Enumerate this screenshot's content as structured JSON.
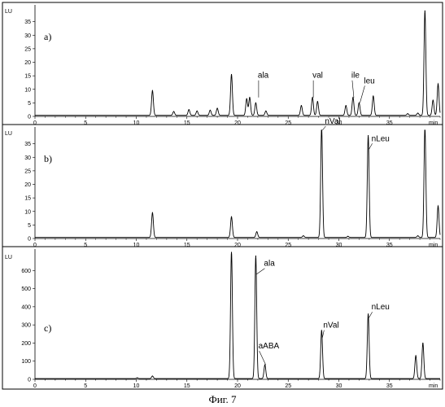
{
  "caption": "Фиг. 7",
  "chart_data": [
    {
      "type": "line",
      "panel_label": "a)",
      "ylabel": "LU",
      "xlabel": "min",
      "xlim": [
        0,
        40
      ],
      "ylim": [
        0,
        40
      ],
      "xticks": [
        0,
        5,
        10,
        15,
        20,
        25,
        30,
        35
      ],
      "yticks": [
        0,
        5,
        10,
        15,
        20,
        25,
        30,
        35
      ],
      "baseline": 0.4,
      "peaks": [
        {
          "x": 11.6,
          "y": 9.5
        },
        {
          "x": 13.7,
          "y": 1.8
        },
        {
          "x": 15.2,
          "y": 2.5
        },
        {
          "x": 16.0,
          "y": 2.0
        },
        {
          "x": 17.3,
          "y": 2.3
        },
        {
          "x": 18.0,
          "y": 3.0
        },
        {
          "x": 19.4,
          "y": 15.5
        },
        {
          "x": 20.9,
          "y": 6.5
        },
        {
          "x": 21.2,
          "y": 7.0
        },
        {
          "x": 21.8,
          "y": 5.0
        },
        {
          "x": 22.8,
          "y": 2.0
        },
        {
          "x": 26.3,
          "y": 4.0
        },
        {
          "x": 27.4,
          "y": 7.0
        },
        {
          "x": 27.9,
          "y": 5.5
        },
        {
          "x": 30.7,
          "y": 4.0
        },
        {
          "x": 31.4,
          "y": 7.0
        },
        {
          "x": 32.0,
          "y": 5.0
        },
        {
          "x": 33.4,
          "y": 7.5
        },
        {
          "x": 36.8,
          "y": 1.0
        },
        {
          "x": 37.8,
          "y": 1.2
        },
        {
          "x": 38.5,
          "y": 39.0
        },
        {
          "x": 39.3,
          "y": 6.0
        },
        {
          "x": 39.8,
          "y": 12.0
        }
      ],
      "annotations": [
        {
          "text": "ala",
          "x": 22.0,
          "y": 7.0
        },
        {
          "text": "val",
          "x": 27.4,
          "y": 7.0
        },
        {
          "text": "ile",
          "x": 31.4,
          "y": 7.0
        },
        {
          "text": "leu",
          "x": 32.0,
          "y": 5.0
        }
      ]
    },
    {
      "type": "line",
      "panel_label": "b)",
      "ylabel": "LU",
      "xlabel": "min",
      "xlim": [
        0,
        40
      ],
      "ylim": [
        0,
        40
      ],
      "xticks": [
        0,
        5,
        10,
        15,
        20,
        25,
        30,
        35
      ],
      "yticks": [
        0,
        5,
        10,
        15,
        20,
        25,
        30,
        35
      ],
      "baseline": 0.4,
      "peaks": [
        {
          "x": 11.6,
          "y": 9.5
        },
        {
          "x": 19.4,
          "y": 8.0
        },
        {
          "x": 21.9,
          "y": 2.5
        },
        {
          "x": 26.5,
          "y": 1.0
        },
        {
          "x": 28.3,
          "y": 41.0
        },
        {
          "x": 30.9,
          "y": 0.8
        },
        {
          "x": 32.9,
          "y": 38.0
        },
        {
          "x": 37.8,
          "y": 1.0
        },
        {
          "x": 38.5,
          "y": 41.0
        },
        {
          "x": 39.8,
          "y": 12.0
        }
      ],
      "annotations": [
        {
          "text": "nVal",
          "x": 28.3,
          "y": 40.0
        },
        {
          "text": "nLeu",
          "x": 32.9,
          "y": 33.0
        }
      ]
    },
    {
      "type": "line",
      "panel_label": "c)",
      "ylabel": "LU",
      "xlabel": "min",
      "xlim": [
        0,
        40
      ],
      "ylim": [
        0,
        700
      ],
      "xticks": [
        0,
        5,
        10,
        15,
        20,
        25,
        30,
        35
      ],
      "yticks": [
        0,
        100,
        200,
        300,
        400,
        500,
        600
      ],
      "baseline": 4,
      "peaks": [
        {
          "x": 10.1,
          "y": 8
        },
        {
          "x": 11.6,
          "y": 18
        },
        {
          "x": 19.4,
          "y": 705
        },
        {
          "x": 21.8,
          "y": 680
        },
        {
          "x": 22.7,
          "y": 80
        },
        {
          "x": 28.3,
          "y": 270
        },
        {
          "x": 32.9,
          "y": 360
        },
        {
          "x": 37.6,
          "y": 130
        },
        {
          "x": 38.3,
          "y": 200
        }
      ],
      "annotations": [
        {
          "text": "ala",
          "x": 21.8,
          "y": 580
        },
        {
          "text": "aABA",
          "x": 22.7,
          "y": 80
        },
        {
          "text": "nVal",
          "x": 28.3,
          "y": 230
        },
        {
          "text": "nLeu",
          "x": 32.9,
          "y": 340
        }
      ]
    }
  ]
}
